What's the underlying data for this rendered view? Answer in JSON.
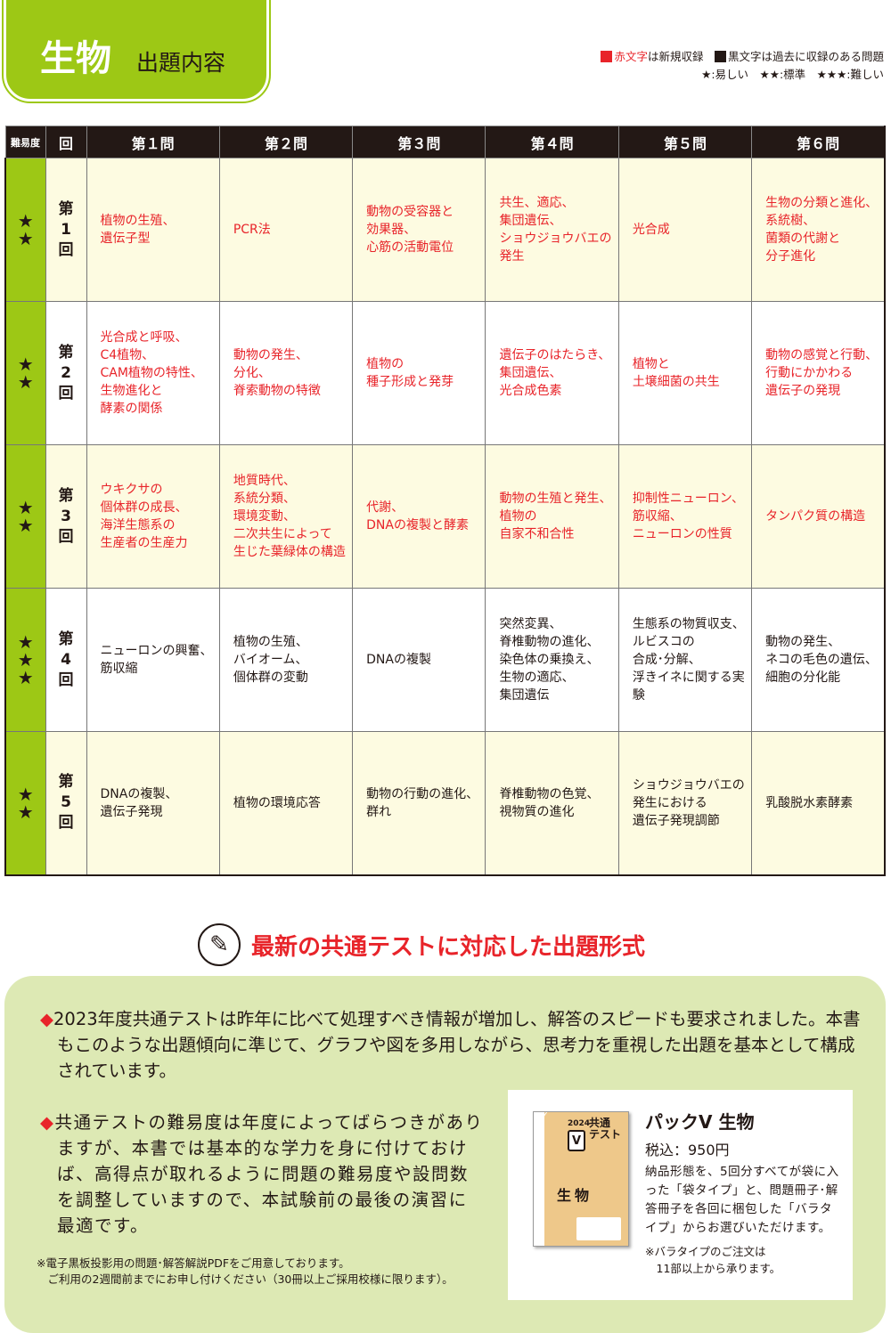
{
  "header": {
    "title": "生物",
    "subtitle": "出題内容"
  },
  "legend": {
    "red_label": "赤文字",
    "red_suffix": "は新規収録",
    "black_label": "黒文字は過去に収録のある問題",
    "levels": "★:易しい　★★:標準　★★★:難しい",
    "red_color": "#e8242a"
  },
  "table": {
    "headers": [
      "難易度",
      "回",
      "第１問",
      "第２問",
      "第３問",
      "第４問",
      "第５問",
      "第６問"
    ],
    "rows": [
      {
        "difficulty": "★\n★",
        "round": "第\n1\n回",
        "cells": [
          {
            "text": "植物の生殖、\n遺伝子型",
            "new": true
          },
          {
            "text": "PCR法",
            "new": true
          },
          {
            "text": "動物の受容器と\n効果器、\n心筋の活動電位",
            "new": true
          },
          {
            "text": "共生、適応、\n集団遺伝、\nショウジョウバエの\n発生",
            "new": true
          },
          {
            "text": "光合成",
            "new": true
          },
          {
            "text": "生物の分類と進化、\n系統樹、\n菌類の代謝と\n分子進化",
            "new": true
          }
        ]
      },
      {
        "difficulty": "★\n★",
        "round": "第\n2\n回",
        "cells": [
          {
            "text": "光合成と呼吸、\nC4植物、\nCAM植物の特性、\n生物進化と\n酵素の関係",
            "new": true
          },
          {
            "text": "動物の発生、\n分化、\n脊索動物の特徴",
            "new": true
          },
          {
            "text": "植物の\n種子形成と発芽",
            "new": true
          },
          {
            "text": "遺伝子のはたらき、\n集団遺伝、\n光合成色素",
            "new": true
          },
          {
            "text": "植物と\n土壌細菌の共生",
            "new": true
          },
          {
            "text": "動物の感覚と行動、\n行動にかかわる\n遺伝子の発現",
            "new": true
          }
        ]
      },
      {
        "difficulty": "★\n★",
        "round": "第\n3\n回",
        "cells": [
          {
            "text": "ウキクサの\n個体群の成長、\n海洋生態系の\n生産者の生産力",
            "new": true
          },
          {
            "text": "地質時代、\n系統分類、\n環境変動、\n二次共生によって\n生じた葉緑体の構造",
            "new": true
          },
          {
            "text": "代謝、\nDNAの複製と酵素",
            "new": true
          },
          {
            "text": "動物の生殖と発生、\n植物の\n自家不和合性",
            "new": true
          },
          {
            "text": "抑制性ニューロン、\n筋収縮、\nニューロンの性質",
            "new": true
          },
          {
            "text": "タンパク質の構造",
            "new": true
          }
        ]
      },
      {
        "difficulty": "★\n★\n★",
        "round": "第\n4\n回",
        "cells": [
          {
            "text": "ニューロンの興奮、\n筋収縮",
            "new": false
          },
          {
            "text": "植物の生殖、\nバイオーム、\n個体群の変動",
            "new": false
          },
          {
            "text": "DNAの複製",
            "new": false
          },
          {
            "text": "突然変異、\n脊椎動物の進化、\n染色体の乗換え、\n生物の適応、\n集団遺伝",
            "new": false
          },
          {
            "text": "生態系の物質収支、\nルビスコの\n合成･分解、\n浮きイネに関する実験",
            "new": false
          },
          {
            "text": "動物の発生、\nネコの毛色の遺伝、\n細胞の分化能",
            "new": false
          }
        ]
      },
      {
        "difficulty": "★\n★",
        "round": "第\n5\n回",
        "cells": [
          {
            "text": "DNAの複製、\n遺伝子発現",
            "new": false
          },
          {
            "text": "植物の環境応答",
            "new": false
          },
          {
            "text": "動物の行動の進化、\n群れ",
            "new": false
          },
          {
            "text": "脊椎動物の色覚、\n視物質の進化",
            "new": false
          },
          {
            "text": "ショウジョウバエの\n発生における\n遺伝子発現調節",
            "new": false
          },
          {
            "text": "乳酸脱水素酵素",
            "new": false
          }
        ]
      }
    ]
  },
  "section": {
    "icon": "pencil-icon",
    "title": "最新の共通テストに対応した出題形式"
  },
  "panel": {
    "bullet": "◆",
    "p1": "2023年度共通テストは昨年に比べて処理すべき情報が増加し、解答のスピードも要求されました。本書もこのような出題傾向に準じて、グラフや図を多用しながら、思考力を重視した出題を基本として構成されています。",
    "p2": "共通テストの難易度は年度によってばらつきがありますが、本書では基本的な学力を身に付けておけば、高得点が取れるように問題の難易度や設問数を調整していますので、本試験前の最後の演習に最適です。",
    "note": "※電子黒板投影用の問題･解答解説PDFをご用意しております。\n　ご利用の2週間前までにお申し付けください（30冊以上ご採用校様に限ります）。"
  },
  "product": {
    "cover_year": "2024",
    "cover_logo": "V",
    "cover_title": "共通\nテスト",
    "cover_subject": "生物",
    "name": "パックV 生物",
    "price": "税込：950円",
    "description": "納品形態を、5回分すべてが袋に入った「袋タイプ」と、問題冊子･解答冊子を各回に梱包した「バラタイプ」からお選びいただけます。",
    "note": "※バラタイプのご注文は\n　11部以上から承ります。"
  }
}
